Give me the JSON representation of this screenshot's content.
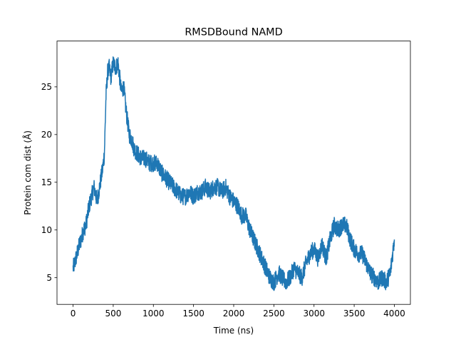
{
  "chart_data": {
    "type": "line",
    "title": "RMSDBound NAMD",
    "xlabel": "Time (ns)",
    "ylabel": "Protein com dist (Å)",
    "xlim": [
      -200,
      4200
    ],
    "ylim": [
      2.2,
      29.8
    ],
    "x_ticks": [
      0,
      500,
      1000,
      1500,
      2000,
      2500,
      3000,
      3500,
      4000
    ],
    "y_ticks": [
      5,
      10,
      15,
      20,
      25
    ],
    "x_tick_labels": [
      "0",
      "500",
      "1000",
      "1500",
      "2000",
      "2500",
      "3000",
      "3500",
      "4000"
    ],
    "y_tick_labels": [
      "5",
      "10",
      "15",
      "20",
      "25"
    ],
    "grid": false,
    "series": [
      {
        "color": "#1f77b4",
        "noise": 0.9,
        "x": [
          0,
          20,
          50,
          80,
          100,
          130,
          160,
          200,
          230,
          260,
          300,
          320,
          350,
          370,
          390,
          410,
          430,
          450,
          470,
          500,
          530,
          560,
          600,
          630,
          660,
          700,
          730,
          760,
          800,
          850,
          900,
          950,
          1000,
          1050,
          1100,
          1150,
          1200,
          1250,
          1300,
          1350,
          1400,
          1450,
          1500,
          1550,
          1600,
          1650,
          1700,
          1750,
          1800,
          1850,
          1900,
          1950,
          2000,
          2050,
          2100,
          2150,
          2200,
          2250,
          2300,
          2350,
          2400,
          2450,
          2500,
          2530,
          2560,
          2600,
          2650,
          2700,
          2750,
          2800,
          2850,
          2900,
          2950,
          3000,
          3050,
          3100,
          3150,
          3200,
          3250,
          3300,
          3350,
          3400,
          3450,
          3500,
          3550,
          3600,
          3650,
          3700,
          3750,
          3800,
          3850,
          3900,
          3950,
          4000
        ],
        "y": [
          6.0,
          6.5,
          7.5,
          8.5,
          9.0,
          10.0,
          10.5,
          12.5,
          13.5,
          14.5,
          13.0,
          14.0,
          15.5,
          16.5,
          18.0,
          24.0,
          26.5,
          27.0,
          26.0,
          27.5,
          27.0,
          27.5,
          24.5,
          25.0,
          22.5,
          20.0,
          19.5,
          18.5,
          18.0,
          17.5,
          17.5,
          17.0,
          17.0,
          17.0,
          16.0,
          15.5,
          15.0,
          14.5,
          14.0,
          13.5,
          13.5,
          14.0,
          13.5,
          14.0,
          14.0,
          14.5,
          14.0,
          14.5,
          14.5,
          14.0,
          14.5,
          13.5,
          13.0,
          12.5,
          11.5,
          11.5,
          10.0,
          9.0,
          8.0,
          7.0,
          6.0,
          5.0,
          4.5,
          5.0,
          5.5,
          5.0,
          4.5,
          5.0,
          6.0,
          5.5,
          5.0,
          6.5,
          7.5,
          8.0,
          7.0,
          8.5,
          7.0,
          9.0,
          10.5,
          10.0,
          10.5,
          10.5,
          9.0,
          8.0,
          7.5,
          7.5,
          6.5,
          5.5,
          5.0,
          4.5,
          5.0,
          4.5,
          5.5,
          9.0
        ]
      }
    ]
  }
}
